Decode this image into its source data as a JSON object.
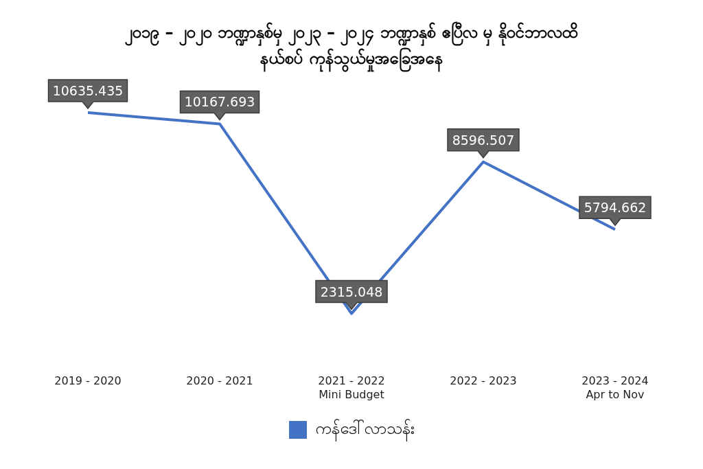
{
  "chart_data": {
    "type": "line",
    "title": "၂၀၁၉ – ၂၀၂၀ ဘဏ္ဍာနှစ်မှ ၂၀၂၃ – ၂၀၂၄ ဘဏ္ဍာနှစ် ဧပြီလ မှ နိုဝင်ဘာလထိ\nနယ်စပ် ကုန်သွယ်မှုအခြေအနေ",
    "categories": [
      "2019 - 2020",
      "2020 - 2021",
      "2021 - 2022\nMini Budget",
      "2022 - 2023",
      "2023 - 2024\nApr to Nov"
    ],
    "series": [
      {
        "name": "ကန်ဒေါ်လာသန်း",
        "color": "#4472c4",
        "values": [
          10635.435,
          10167.693,
          2315.048,
          8596.507,
          5794.662
        ]
      }
    ],
    "data_labels": true,
    "legend": "bottom",
    "grid": false,
    "marker": "none",
    "line_style": "solid"
  }
}
